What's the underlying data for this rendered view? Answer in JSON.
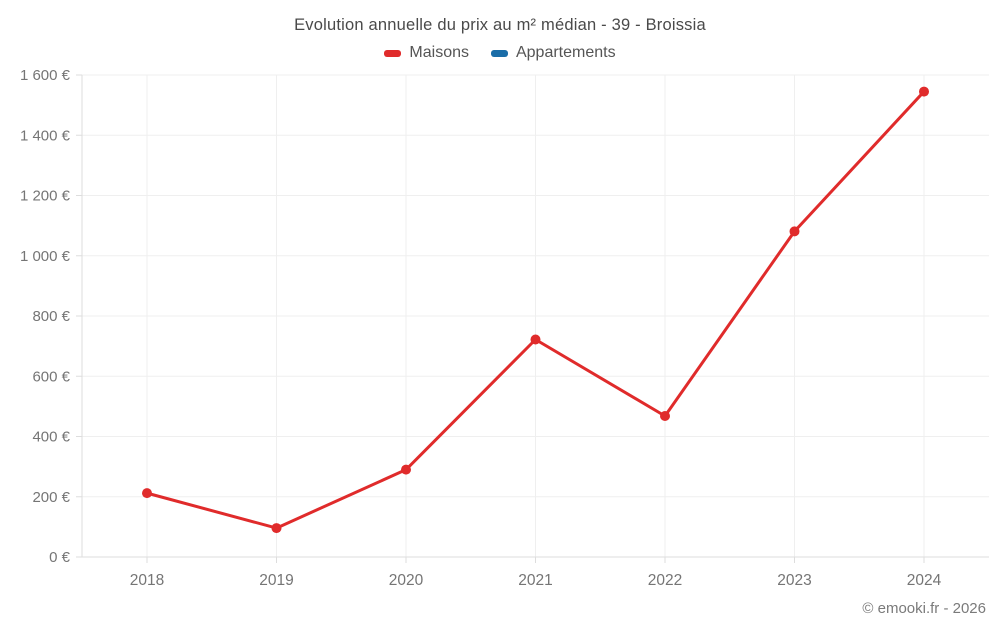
{
  "title": "Evolution annuelle du prix au m² médian - 39 - Broissia",
  "legend": [
    {
      "label": "Maisons",
      "color": "#e02b2b"
    },
    {
      "label": "Appartements",
      "color": "#1a6da8"
    }
  ],
  "footer": "© emooki.fr - 2026",
  "colors": {
    "maisons": "#e02b2b",
    "appartements": "#1a6da8",
    "grid": "#efefef",
    "axis": "#dddddd",
    "tick_text": "#757575",
    "title_text": "#4a4a4a"
  },
  "chart_data": {
    "type": "line",
    "title": "Evolution annuelle du prix au m² médian - 39 - Broissia",
    "categories": [
      "2018",
      "2019",
      "2020",
      "2021",
      "2022",
      "2023",
      "2024"
    ],
    "series": [
      {
        "name": "Maisons",
        "color": "#e02b2b",
        "values": [
          212,
          96,
          290,
          722,
          468,
          1081,
          1545
        ]
      },
      {
        "name": "Appartements",
        "color": "#1a6da8",
        "values": []
      }
    ],
    "xlabel": "",
    "ylabel": "",
    "ylim": [
      0,
      1600
    ],
    "ytick_step": 200,
    "ytick_suffix": " €",
    "ytick_labels": [
      "0 €",
      "200 €",
      "400 €",
      "600 €",
      "800 €",
      "1 000 €",
      "1 200 €",
      "1 400 €",
      "1 600 €"
    ],
    "grid": true,
    "legend_position": "top",
    "marker": "circle"
  }
}
